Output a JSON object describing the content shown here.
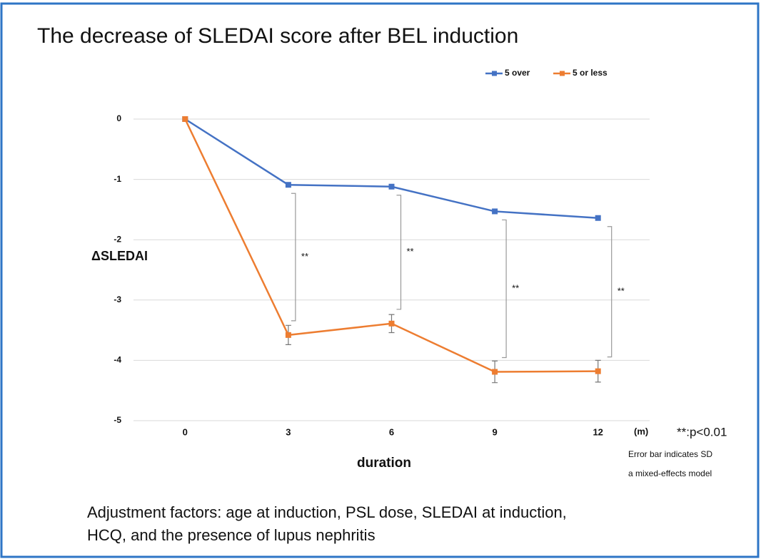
{
  "chart_data": {
    "type": "line",
    "title": "The decrease of SLEDAI score after BEL induction",
    "categories": [
      "0",
      "3",
      "6",
      "9",
      "12"
    ],
    "x_unit": "(m)",
    "xlabel": "duration",
    "ylabel": "ΔSLEDAI",
    "series": [
      {
        "name": "5 over",
        "color": "#4472c4",
        "values": [
          0,
          -1.09,
          -1.12,
          -1.53,
          -1.64
        ]
      },
      {
        "name": "5 or less",
        "color": "#ed7d31",
        "values": [
          0,
          -3.58,
          -3.39,
          -4.19,
          -4.18
        ],
        "errors": [
          0,
          0.16,
          0.15,
          0.18,
          0.18
        ]
      }
    ],
    "significance_labels": [
      "**",
      "**",
      "**",
      "**"
    ],
    "ylim": [
      -5,
      0
    ],
    "yticks": [
      0,
      -1,
      -2,
      -3,
      -4,
      -5
    ],
    "grid": true,
    "legend": "top-right",
    "notes": [
      "**:p<0.01",
      "Error bar indicates SD",
      "a mixed-effects model"
    ],
    "footer": [
      "Adjustment factors: age at induction, PSL dose, SLEDAI at induction,",
      "HCQ, and the presence of lupus nephritis"
    ]
  }
}
